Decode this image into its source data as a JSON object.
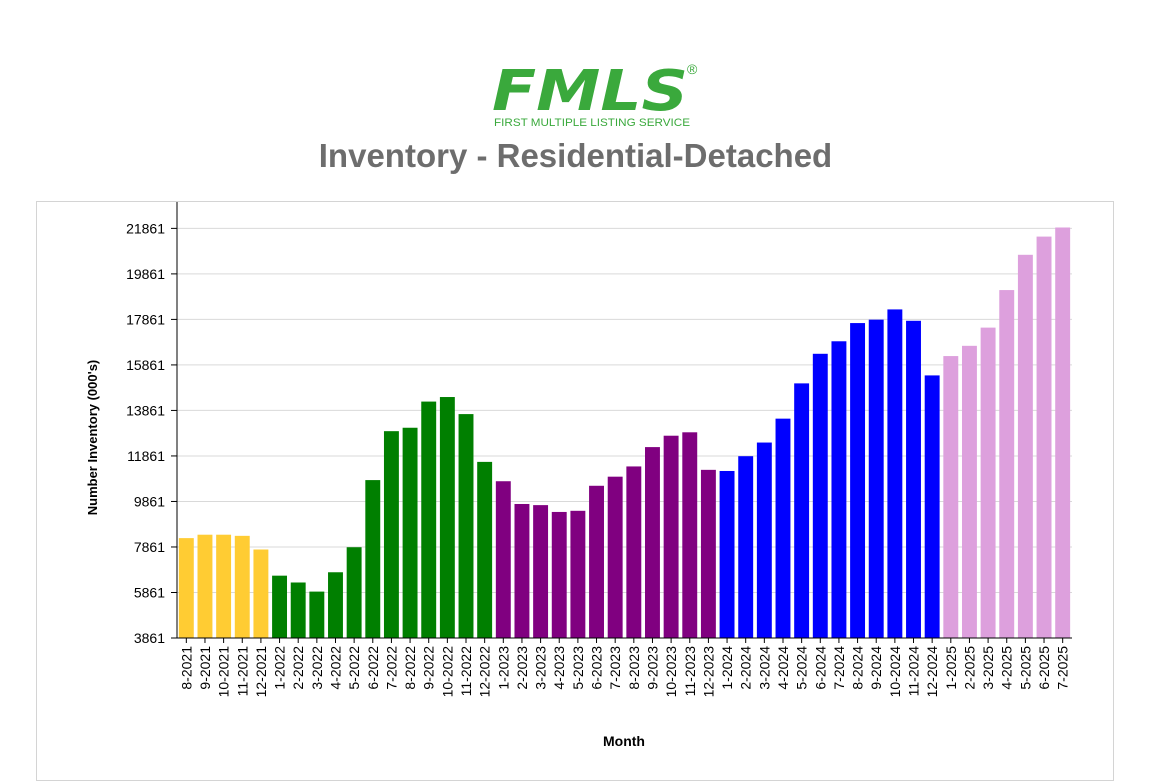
{
  "header": {
    "logo_text": "FMLS",
    "logo_subtitle": "FIRST MULTIPLE LISTING SERVICE",
    "logo_mark": "®",
    "title": "Inventory - Residential-Detached"
  },
  "colors": {
    "brand_green": "#3aa93c",
    "title_gray": "#6d6d6d",
    "2021": "#ffcc33",
    "2022": "#007f00",
    "2023": "#800080",
    "2024": "#0000ff",
    "2025": "#dda0dd"
  },
  "chart_data": {
    "type": "bar",
    "title": "",
    "xlabel": "Month",
    "ylabel": "Number Inventory (000's)",
    "ylim": [
      3861,
      22361
    ],
    "yticks": [
      3861,
      5861,
      7861,
      9861,
      11861,
      13861,
      15861,
      17861,
      19861,
      21861
    ],
    "grid": "horizontal",
    "categories": [
      "8-2021",
      "9-2021",
      "10-2021",
      "11-2021",
      "12-2021",
      "1-2022",
      "2-2022",
      "3-2022",
      "4-2022",
      "5-2022",
      "6-2022",
      "7-2022",
      "8-2022",
      "9-2022",
      "10-2022",
      "11-2022",
      "12-2022",
      "1-2023",
      "2-2023",
      "3-2023",
      "4-2023",
      "5-2023",
      "6-2023",
      "7-2023",
      "8-2023",
      "9-2023",
      "10-2023",
      "11-2023",
      "12-2023",
      "1-2024",
      "2-2024",
      "3-2024",
      "4-2024",
      "5-2024",
      "6-2024",
      "7-2024",
      "8-2024",
      "9-2024",
      "10-2024",
      "11-2024",
      "12-2024",
      "1-2025",
      "2-2025",
      "3-2025",
      "4-2025",
      "5-2025",
      "6-2025",
      "7-2025"
    ],
    "values": [
      8250,
      8400,
      8400,
      8350,
      7750,
      6600,
      6300,
      5900,
      6750,
      7850,
      10800,
      12950,
      13100,
      14250,
      14450,
      13700,
      11600,
      10750,
      9750,
      9700,
      9400,
      9450,
      10550,
      10950,
      11400,
      12250,
      12750,
      12900,
      11250,
      11200,
      11850,
      12450,
      13500,
      15050,
      16350,
      16900,
      17700,
      17850,
      18300,
      17800,
      15400,
      16250,
      16700,
      17500,
      19150,
      20700,
      21500,
      21900
    ],
    "bar_colors": [
      "#ffcc33",
      "#ffcc33",
      "#ffcc33",
      "#ffcc33",
      "#ffcc33",
      "#007f00",
      "#007f00",
      "#007f00",
      "#007f00",
      "#007f00",
      "#007f00",
      "#007f00",
      "#007f00",
      "#007f00",
      "#007f00",
      "#007f00",
      "#007f00",
      "#800080",
      "#800080",
      "#800080",
      "#800080",
      "#800080",
      "#800080",
      "#800080",
      "#800080",
      "#800080",
      "#800080",
      "#800080",
      "#800080",
      "#0000ff",
      "#0000ff",
      "#0000ff",
      "#0000ff",
      "#0000ff",
      "#0000ff",
      "#0000ff",
      "#0000ff",
      "#0000ff",
      "#0000ff",
      "#0000ff",
      "#0000ff",
      "#dda0dd",
      "#dda0dd",
      "#dda0dd",
      "#dda0dd",
      "#dda0dd",
      "#dda0dd",
      "#dda0dd"
    ]
  }
}
